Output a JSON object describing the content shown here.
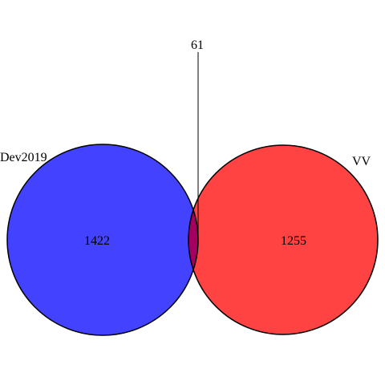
{
  "diagram": {
    "type": "venn",
    "sets": [
      {
        "name": "Dev2019",
        "only_count": "1422",
        "color": "#0000ff"
      },
      {
        "name": "VV",
        "only_count": "1255",
        "color": "#ff0000"
      }
    ],
    "intersection": {
      "count": "61",
      "color": "#a30060"
    },
    "outline_color": "#000000",
    "background": "#ffffff"
  }
}
